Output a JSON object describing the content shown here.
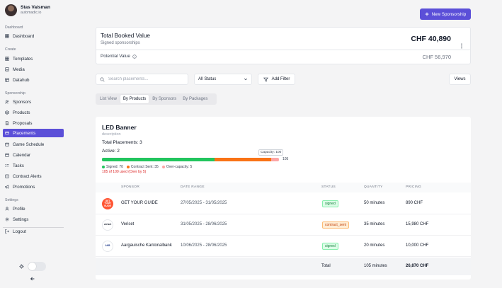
{
  "user": {
    "name": "Stas Vaisman",
    "email": "automadic.io"
  },
  "sidebar": {
    "sections": [
      {
        "label": "Dashboard",
        "items": [
          {
            "label": "Dashboard",
            "icon": "grid-icon"
          }
        ]
      },
      {
        "label": "Create",
        "items": [
          {
            "label": "Templates",
            "icon": "grid-icon"
          },
          {
            "label": "Media",
            "icon": "image-icon"
          },
          {
            "label": "Datahub",
            "icon": "database-icon"
          }
        ]
      },
      {
        "label": "Sponsorship",
        "items": [
          {
            "label": "Sponsors",
            "icon": "users-icon"
          },
          {
            "label": "Products",
            "icon": "box-icon"
          },
          {
            "label": "Proposals",
            "icon": "file-icon"
          },
          {
            "label": "Placements",
            "icon": "placement-icon",
            "active": true
          },
          {
            "label": "Game Schedule",
            "icon": "calendar-icon"
          },
          {
            "label": "Calendar",
            "icon": "calendar-icon"
          },
          {
            "label": "Tasks",
            "icon": "tasks-icon"
          },
          {
            "label": "Contract Alerts",
            "icon": "alert-icon"
          },
          {
            "label": "Promotions",
            "icon": "megaphone-icon"
          }
        ]
      },
      {
        "label": "Settings",
        "items": [
          {
            "label": "Profile",
            "icon": "user-icon"
          },
          {
            "label": "Settings",
            "icon": "gear-icon"
          }
        ]
      }
    ],
    "logout": "Logout"
  },
  "header": {
    "new_sponsorship": "New Sponsorship"
  },
  "summary": {
    "title": "Total Booked Value",
    "subtitle": "Signed sponsorships",
    "value": "CHF 40,890",
    "potential_label": "Potential Value",
    "potential_value": "CHF 56,970"
  },
  "filters": {
    "search_placeholder": "Search placements...",
    "status": "All Status",
    "add_filter": "Add Filter",
    "views": "Views"
  },
  "tabs": [
    {
      "label": "List View",
      "active": false
    },
    {
      "label": "By Products",
      "active": true
    },
    {
      "label": "By Sponsors",
      "active": false
    },
    {
      "label": "By Packages",
      "active": false
    }
  ],
  "product": {
    "name": "LED Banner",
    "description": "description",
    "total_placements": "Total Placements: 3",
    "active": "Active: 2",
    "capacity_label": "Capacity: 100",
    "capacity": 100,
    "bar_total": "105",
    "signed": 70,
    "contract_sent": 35,
    "over_capacity": 5,
    "legend": [
      "Signed: 70",
      "Contract Sent: 35",
      "Over-capacity: 5"
    ],
    "over_note": "105 of 100 used (Over by 5)"
  },
  "colors": {
    "accent": "#5b4fd8",
    "signed": "#22c55e",
    "contract_sent": "#f97316",
    "over": "#fca5a5"
  },
  "table": {
    "columns": [
      "SPONSOR",
      "DATE RANGE",
      "STATUS",
      "QUANTITY",
      "PRICING"
    ],
    "rows": [
      {
        "sponsor": "GET YOUR GUIDE",
        "logo_text": "GET YOUR GUIDE",
        "logo_bg": "#ff5533",
        "logo_fg": "#ffffff",
        "date_range": "27/05/2025 - 31/05/2025",
        "status": "signed",
        "quantity": "50 minutes",
        "pricing": "890 CHF"
      },
      {
        "sponsor": "Veriset",
        "logo_text": "veriset",
        "logo_bg": "#ffffff",
        "logo_fg": "#111827",
        "date_range": "31/05/2025 - 28/06/2025",
        "status": "contract_sent",
        "quantity": "35 minutes",
        "pricing": "15,980 CHF"
      },
      {
        "sponsor": "Aargauische Kantonalbank",
        "logo_text": "AKB",
        "logo_bg": "#ffffff",
        "logo_fg": "#1e3a8a",
        "date_range": "10/06/2025 - 28/06/2025",
        "status": "signed",
        "quantity": "20 minutes",
        "pricing": "10,000 CHF"
      }
    ],
    "total": {
      "label": "Total",
      "quantity": "105 minutes",
      "pricing": "26,870 CHF"
    }
  }
}
